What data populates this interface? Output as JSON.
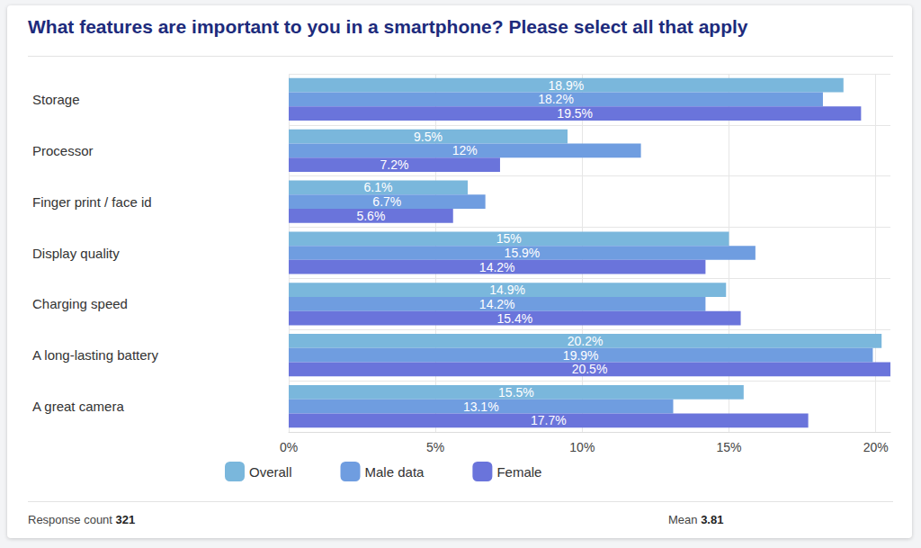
{
  "chart_data": {
    "type": "bar",
    "orientation": "horizontal",
    "title": "What features are important to you in a smartphone? Please select all that apply",
    "categories": [
      "Storage",
      "Processor",
      "Finger print / face id",
      "Display quality",
      "Charging speed",
      "A long-lasting battery",
      "A great camera"
    ],
    "series": [
      {
        "name": "Overall",
        "color": "#7ab7dc",
        "values": [
          18.9,
          9.5,
          6.1,
          15,
          14.9,
          20.2,
          15.5
        ],
        "value_labels": [
          "18.9%",
          "9.5%",
          "6.1%",
          "15%",
          "14.9%",
          "20.2%",
          "15.5%"
        ]
      },
      {
        "name": "Male data",
        "color": "#6f9de0",
        "values": [
          18.2,
          12,
          6.7,
          15.9,
          14.2,
          19.9,
          13.1
        ],
        "value_labels": [
          "18.2%",
          "12%",
          "6.7%",
          "15.9%",
          "14.2%",
          "19.9%",
          "13.1%"
        ]
      },
      {
        "name": "Female",
        "color": "#6a74db",
        "values": [
          19.5,
          7.2,
          5.6,
          14.2,
          15.4,
          20.5,
          17.7
        ],
        "value_labels": [
          "19.5%",
          "7.2%",
          "5.6%",
          "14.2%",
          "15.4%",
          "20.5%",
          "17.7%"
        ]
      }
    ],
    "xlim": [
      0,
      20.5
    ],
    "xticks": [
      {
        "value": 0,
        "label": "0%"
      },
      {
        "value": 5,
        "label": "5%"
      },
      {
        "value": 10,
        "label": "10%"
      },
      {
        "value": 15,
        "label": "15%"
      },
      {
        "value": 20,
        "label": "20%"
      }
    ],
    "grid": true,
    "legend": "bottom",
    "data_labels": true,
    "annotations": [
      {
        "text": "Response count",
        "value": 321
      },
      {
        "text": "Mean",
        "value": 3.81
      }
    ]
  }
}
